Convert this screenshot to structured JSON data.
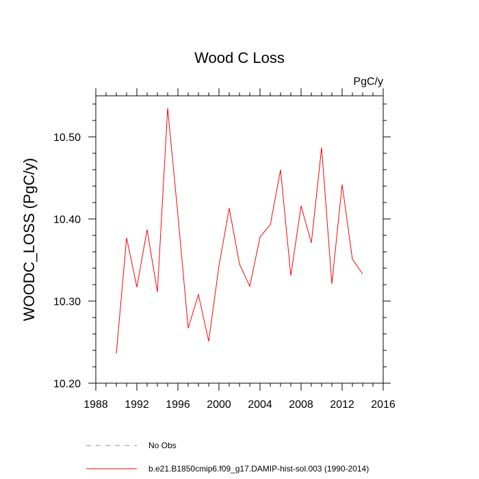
{
  "chart_data": {
    "type": "line",
    "title": "Wood C Loss",
    "units_label": "PgC/y",
    "ylabel": "WOODC_LOSS  (PgC/y)",
    "xlabel": "",
    "xlim": [
      1988,
      2016
    ],
    "ylim": [
      10.2,
      10.55
    ],
    "x_ticks": [
      1988,
      1992,
      1996,
      2000,
      2004,
      2008,
      2012,
      2016
    ],
    "x_tick_labels": [
      "1988",
      "1992",
      "1996",
      "2000",
      "2004",
      "2008",
      "2012",
      "2016"
    ],
    "y_ticks": [
      10.2,
      10.3,
      10.4,
      10.5
    ],
    "y_tick_labels": [
      "10.20",
      "10.30",
      "10.40",
      "10.50"
    ],
    "grid": false,
    "legend_position": "bottom",
    "series": [
      {
        "name": "b.e21.B1850cmip6.f09_g17.DAMIP-hist-sol.003 (1990-2014)",
        "color": "#ff0000",
        "x": [
          1990,
          1991,
          1992,
          1993,
          1994,
          1995,
          1996,
          1997,
          1998,
          1999,
          2000,
          2001,
          2002,
          2003,
          2004,
          2005,
          2006,
          2007,
          2008,
          2009,
          2010,
          2011,
          2012,
          2013,
          2014
        ],
        "y": [
          10.236,
          10.377,
          10.317,
          10.387,
          10.311,
          10.535,
          10.405,
          10.267,
          10.308,
          10.251,
          10.343,
          10.413,
          10.345,
          10.318,
          10.378,
          10.393,
          10.46,
          10.331,
          10.416,
          10.371,
          10.487,
          10.321,
          10.442,
          10.351,
          10.333
        ]
      }
    ],
    "legend": [
      {
        "label": "No Obs",
        "color": "#8080ff",
        "style": "dashed"
      },
      {
        "label": "b.e21.B1850cmip6.f09_g17.DAMIP-hist-sol.003 (1990-2014)",
        "color": "#ff0000",
        "style": "solid"
      }
    ]
  }
}
